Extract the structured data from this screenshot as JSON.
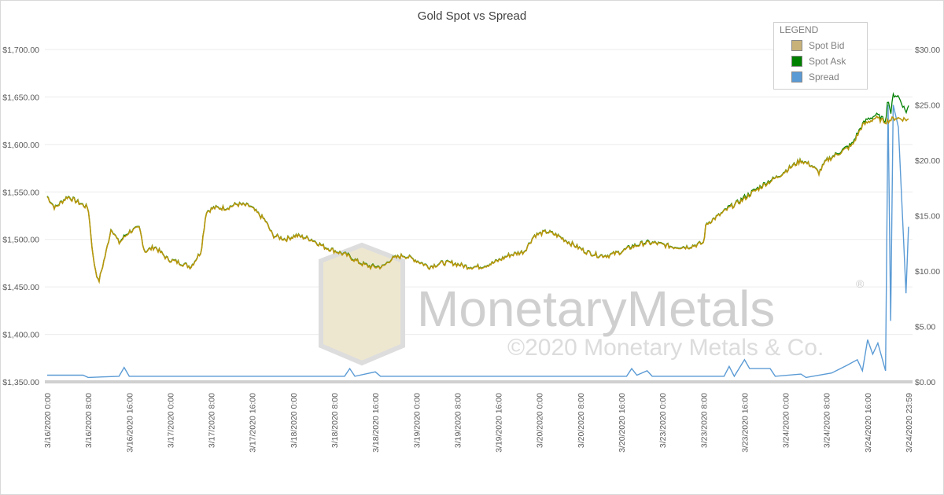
{
  "chart_data": {
    "type": "line",
    "title": "Gold Spot vs Spread",
    "legend": {
      "title": "LEGEND",
      "placement": "top-right"
    },
    "x_categories": [
      "3/16/2020 0:00",
      "3/16/2020 8:00",
      "3/16/2020 16:00",
      "3/17/2020 0:00",
      "3/17/2020 8:00",
      "3/17/2020 16:00",
      "3/18/2020 0:00",
      "3/18/2020 8:00",
      "3/18/2020 16:00",
      "3/19/2020 0:00",
      "3/19/2020 8:00",
      "3/19/2020 16:00",
      "3/20/2020 0:00",
      "3/20/2020 8:00",
      "3/20/2020 16:00",
      "3/23/2020 0:00",
      "3/23/2020 8:00",
      "3/23/2020 16:00",
      "3/24/2020 0:00",
      "3/24/2020 8:00",
      "3/24/2020 16:00",
      "3/24/2020 23:59"
    ],
    "y_left": {
      "ylim": [
        1350,
        1700
      ],
      "ticks": [
        "$1,350.00",
        "$1,400.00",
        "$1,450.00",
        "$1,500.00",
        "$1,550.00",
        "$1,600.00",
        "$1,650.00",
        "$1,700.00"
      ]
    },
    "y_right": {
      "ylim": [
        0,
        30
      ],
      "ticks": [
        "$0.00",
        "$5.00",
        "$10.00",
        "$15.00",
        "$20.00",
        "$25.00",
        "$30.00"
      ]
    },
    "grid": true,
    "series": [
      {
        "name": "Spot Bid",
        "color": "#c8b27a",
        "line_color": "#b8960c",
        "axis": "left",
        "points": [
          [
            "3/16 0:00",
            1545
          ],
          [
            "3/16 1:30",
            1533
          ],
          [
            "3/16 4:00",
            1545
          ],
          [
            "3/16 8:00",
            1533
          ],
          [
            "3/16 9:00",
            1479
          ],
          [
            "3/16 10:00",
            1454
          ],
          [
            "3/16 11:30",
            1487
          ],
          [
            "3/16 12:30",
            1512
          ],
          [
            "3/16 14:00",
            1496
          ],
          [
            "3/16 16:00",
            1508
          ],
          [
            "3/16 18:00",
            1512
          ],
          [
            "3/16 19:00",
            1487
          ],
          [
            "3/16 21:00",
            1492
          ],
          [
            "3/16 23:30",
            1479
          ],
          [
            "3/17 2:00",
            1475
          ],
          [
            "3/17 4:00",
            1471
          ],
          [
            "3/17 6:00",
            1487
          ],
          [
            "3/17 7:00",
            1529
          ],
          [
            "3/17 8:30",
            1533
          ],
          [
            "3/17 11:00",
            1533
          ],
          [
            "3/17 13:00",
            1537
          ],
          [
            "3/17 15:30",
            1535
          ],
          [
            "3/17 18:30",
            1520
          ],
          [
            "3/17 20:00",
            1504
          ],
          [
            "3/17 22:30",
            1500
          ],
          [
            "3/18 0:30",
            1504
          ],
          [
            "3/18 3:30",
            1500
          ],
          [
            "3/18 6:00",
            1492
          ],
          [
            "3/18 8:30",
            1487
          ],
          [
            "3/18 10:30",
            1483
          ],
          [
            "3/18 13:00",
            1475
          ],
          [
            "3/18 15:00",
            1471
          ],
          [
            "3/18 17:30",
            1471
          ],
          [
            "3/18 19:00",
            1479
          ],
          [
            "3/18 21:30",
            1483
          ],
          [
            "3/18 23:30",
            1479
          ],
          [
            "3/19 2:30",
            1471
          ],
          [
            "3/19 5:00",
            1475
          ],
          [
            "3/19 7:00",
            1475
          ],
          [
            "3/19 10:00",
            1471
          ],
          [
            "3/19 12:30",
            1471
          ],
          [
            "3/19 15:00",
            1475
          ],
          [
            "3/19 18:00",
            1483
          ],
          [
            "3/19 21:00",
            1487
          ],
          [
            "3/19 23:00",
            1504
          ],
          [
            "3/20 1:30",
            1508
          ],
          [
            "3/20 3:30",
            1504
          ],
          [
            "3/20 6:00",
            1496
          ],
          [
            "3/20 9:00",
            1487
          ],
          [
            "3/20 11:30",
            1483
          ],
          [
            "3/20 13:30",
            1483
          ],
          [
            "3/20 16:00",
            1487
          ],
          [
            "3/20 18:00",
            1492
          ],
          [
            "3/20 20:30",
            1496
          ],
          [
            "3/20 22:30",
            1496
          ],
          [
            "3/23 2:00",
            1492
          ],
          [
            "3/23 5:00",
            1492
          ],
          [
            "3/23 8:00",
            1496
          ],
          [
            "3/23 8:30",
            1516
          ],
          [
            "3/23 11:00",
            1525
          ],
          [
            "3/23 13:00",
            1533
          ],
          [
            "3/23 15:30",
            1541
          ],
          [
            "3/23 17:30",
            1549
          ],
          [
            "3/23 20:00",
            1558
          ],
          [
            "3/23 22:30",
            1566
          ],
          [
            "3/24 0:30",
            1574
          ],
          [
            "3/24 3:00",
            1583
          ],
          [
            "3/24 5:00",
            1578
          ],
          [
            "3/24 6:30",
            1570
          ],
          [
            "3/24 8:00",
            1583
          ],
          [
            "3/24 10:30",
            1591
          ],
          [
            "3/24 13:00",
            1599
          ],
          [
            "3/24 15:00",
            1620
          ],
          [
            "3/24 17:30",
            1628
          ],
          [
            "3/24 19:30",
            1624
          ],
          [
            "3/24 21:30",
            1628
          ],
          [
            "3/24 23:59",
            1626
          ]
        ]
      },
      {
        "name": "Spot Ask",
        "color": "#008000",
        "axis": "left",
        "note_rule": "bid + spread"
      },
      {
        "name": "Spread",
        "color": "#5b9bd5",
        "axis": "right",
        "points": [
          [
            "3/16 0:00",
            0.6
          ],
          [
            "3/16 7:00",
            0.6
          ],
          [
            "3/16 8:00",
            0.4
          ],
          [
            "3/16 14:00",
            0.5
          ],
          [
            "3/16 15:00",
            1.3
          ],
          [
            "3/16 16:00",
            0.5
          ],
          [
            "3/18 10:00",
            0.5
          ],
          [
            "3/18 11:00",
            1.2
          ],
          [
            "3/18 12:00",
            0.5
          ],
          [
            "3/18 16:00",
            0.9
          ],
          [
            "3/18 17:00",
            0.5
          ],
          [
            "3/20 17:00",
            0.5
          ],
          [
            "3/20 18:00",
            1.2
          ],
          [
            "3/20 19:00",
            0.6
          ],
          [
            "3/20 21:00",
            1.0
          ],
          [
            "3/20 22:00",
            0.5
          ],
          [
            "3/23 12:00",
            0.5
          ],
          [
            "3/23 13:00",
            1.4
          ],
          [
            "3/23 14:00",
            0.5
          ],
          [
            "3/23 16:00",
            2.0
          ],
          [
            "3/23 17:00",
            1.2
          ],
          [
            "3/23 21:00",
            1.2
          ],
          [
            "3/23 22:00",
            0.5
          ],
          [
            "3/24 3:00",
            0.7
          ],
          [
            "3/24 4:00",
            0.4
          ],
          [
            "3/24 9:00",
            0.8
          ],
          [
            "3/24 12:00",
            1.5
          ],
          [
            "3/24 14:00",
            2.0
          ],
          [
            "3/24 15:00",
            1.0
          ],
          [
            "3/24 16:00",
            3.8
          ],
          [
            "3/24 17:00",
            2.5
          ],
          [
            "3/24 18:00",
            3.5
          ],
          [
            "3/24 19:30",
            1.0
          ],
          [
            "3/24 20:00",
            25
          ],
          [
            "3/24 20:30",
            5.5
          ],
          [
            "3/24 21:00",
            25
          ],
          [
            "3/24 22:00",
            23
          ],
          [
            "3/24 23:00",
            13
          ],
          [
            "3/24 23:30",
            8
          ],
          [
            "3/24 23:59",
            14
          ]
        ]
      }
    ]
  },
  "watermark": {
    "brand": "MonetaryMetals",
    "reg": "®",
    "copyright": "©2020 Monetary Metals & Co."
  }
}
